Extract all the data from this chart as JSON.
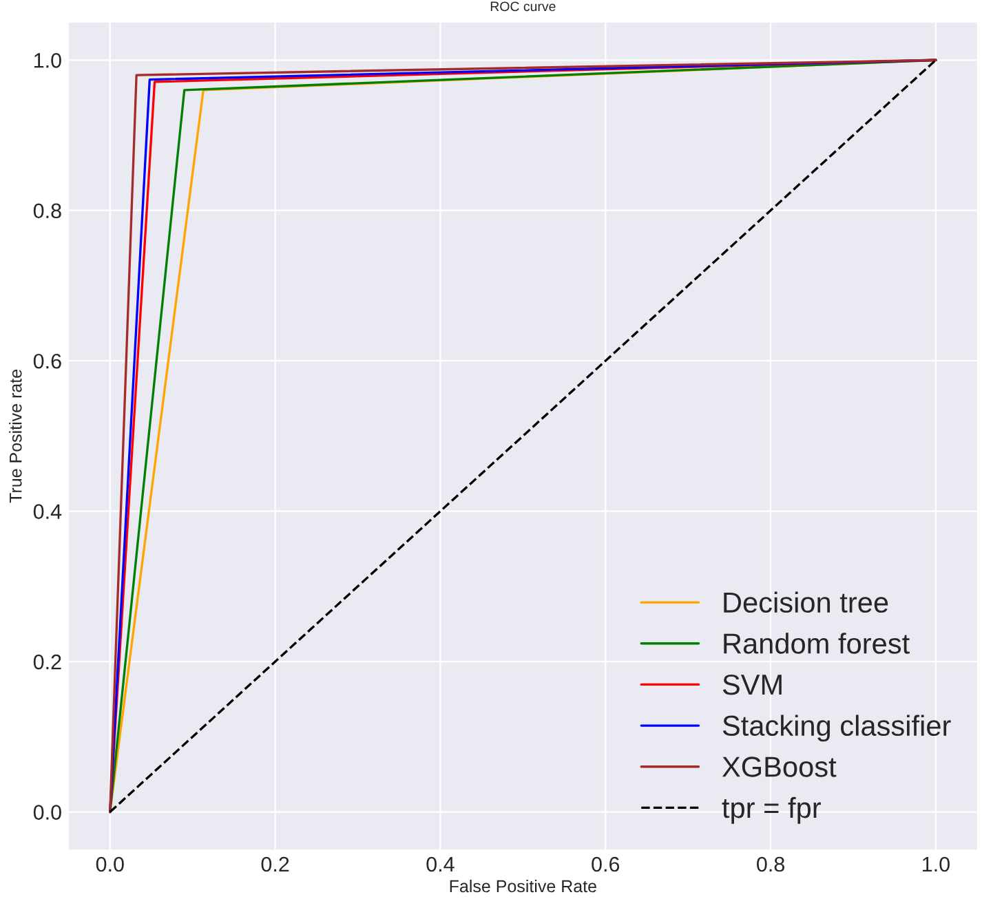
{
  "chart_data": {
    "type": "line",
    "title": "ROC curve",
    "xlabel": "False Positive Rate",
    "ylabel": "True Positive rate",
    "xlim": [
      -0.05,
      1.05
    ],
    "ylim": [
      -0.05,
      1.05
    ],
    "xticks": [
      {
        "value": 0,
        "label": "0.0"
      },
      {
        "value": 0.2,
        "label": "0.2"
      },
      {
        "value": 0.4,
        "label": "0.4"
      },
      {
        "value": 0.6,
        "label": "0.6"
      },
      {
        "value": 0.8,
        "label": "0.8"
      },
      {
        "value": 1,
        "label": "1.0"
      }
    ],
    "yticks": [
      {
        "value": 0,
        "label": "0.0"
      },
      {
        "value": 0.2,
        "label": "0.2"
      },
      {
        "value": 0.4,
        "label": "0.4"
      },
      {
        "value": 0.6,
        "label": "0.6"
      },
      {
        "value": 0.8,
        "label": "0.8"
      },
      {
        "value": 1,
        "label": "1.0"
      }
    ],
    "grid": true,
    "legend": "bottom right",
    "series": [
      {
        "name": "Decision tree",
        "color": "#ffa500",
        "x": [
          0,
          0.113,
          1
        ],
        "values": [
          0,
          0.96,
          1
        ]
      },
      {
        "name": "Random forest",
        "color": "#008000",
        "x": [
          0,
          0.09,
          1
        ],
        "values": [
          0,
          0.96,
          1
        ]
      },
      {
        "name": "SVM",
        "color": "#ff0000",
        "x": [
          0,
          0.054,
          1
        ],
        "values": [
          0,
          0.971,
          1
        ]
      },
      {
        "name": "Stacking classifier",
        "color": "#0000ff",
        "x": [
          0,
          0.048,
          1
        ],
        "values": [
          0,
          0.974,
          1
        ]
      },
      {
        "name": "XGBoost",
        "color": "#a52a2a",
        "x": [
          0,
          0.032,
          1
        ],
        "values": [
          0,
          0.98,
          1
        ]
      },
      {
        "name": "tpr = fpr",
        "color": "#000000",
        "x": [
          0,
          1
        ],
        "values": [
          0,
          1
        ],
        "line_style": "dashed"
      }
    ]
  }
}
